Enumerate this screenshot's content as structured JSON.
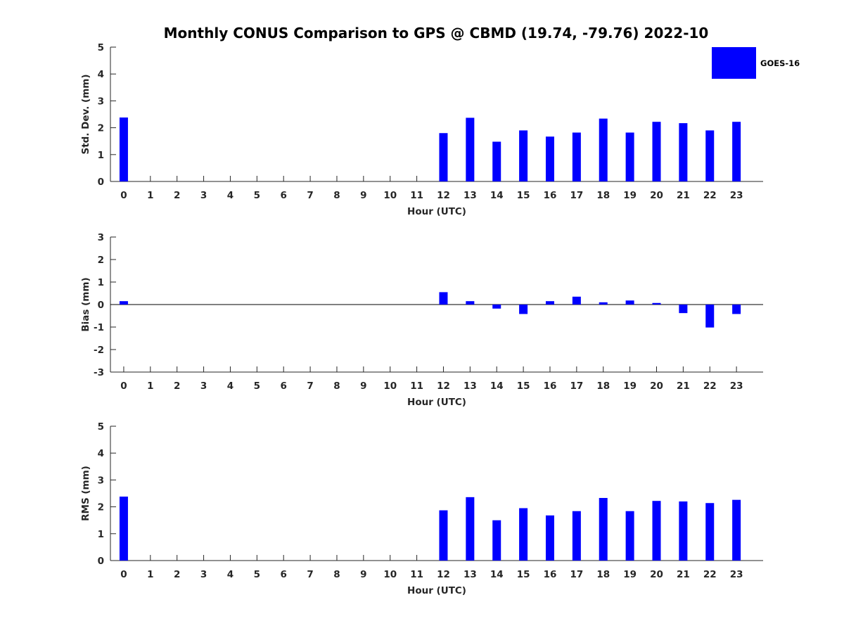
{
  "chart_data": {
    "title": "Monthly CONUS Comparison to GPS @ CBMD (19.74, -79.76) 2022-10",
    "legend": {
      "labels": [
        "GOES-16"
      ],
      "placement": "top-right"
    },
    "bar_color": "#0000ff",
    "x_categories": [
      "0",
      "1",
      "2",
      "3",
      "4",
      "5",
      "6",
      "7",
      "8",
      "9",
      "10",
      "11",
      "12",
      "13",
      "14",
      "15",
      "16",
      "17",
      "18",
      "19",
      "20",
      "21",
      "22",
      "23"
    ],
    "panels": [
      {
        "type": "bar",
        "ylabel": "Std. Dev. (mm)",
        "xlabel": "Hour (UTC)",
        "ylim": [
          0,
          5
        ],
        "yticks": [
          0,
          1,
          2,
          3,
          4,
          5
        ],
        "series": [
          {
            "name": "GOES-16",
            "values": [
              2.38,
              null,
              null,
              null,
              null,
              null,
              null,
              null,
              null,
              null,
              null,
              null,
              1.8,
              2.37,
              1.48,
              1.9,
              1.67,
              1.82,
              2.34,
              1.82,
              2.22,
              2.17,
              1.9,
              2.22
            ]
          }
        ]
      },
      {
        "type": "bar",
        "ylabel": "Bias (mm)",
        "xlabel": "Hour (UTC)",
        "ylim": [
          -3,
          3
        ],
        "yticks": [
          -3,
          -2,
          -1,
          0,
          1,
          2,
          3
        ],
        "series": [
          {
            "name": "GOES-16",
            "values": [
              0.15,
              null,
              null,
              null,
              null,
              null,
              null,
              null,
              null,
              null,
              null,
              null,
              0.55,
              0.15,
              -0.18,
              -0.42,
              0.15,
              0.35,
              0.1,
              0.18,
              0.07,
              -0.38,
              -1.02,
              -0.42
            ]
          }
        ]
      },
      {
        "type": "bar",
        "ylabel": "RMS (mm)",
        "xlabel": "Hour (UTC)",
        "ylim": [
          0,
          5
        ],
        "yticks": [
          0,
          1,
          2,
          3,
          4,
          5
        ],
        "series": [
          {
            "name": "GOES-16",
            "values": [
              2.38,
              null,
              null,
              null,
              null,
              null,
              null,
              null,
              null,
              null,
              null,
              null,
              1.87,
              2.36,
              1.5,
              1.95,
              1.68,
              1.84,
              2.33,
              1.84,
              2.22,
              2.2,
              2.14,
              2.26
            ]
          }
        ]
      }
    ]
  }
}
